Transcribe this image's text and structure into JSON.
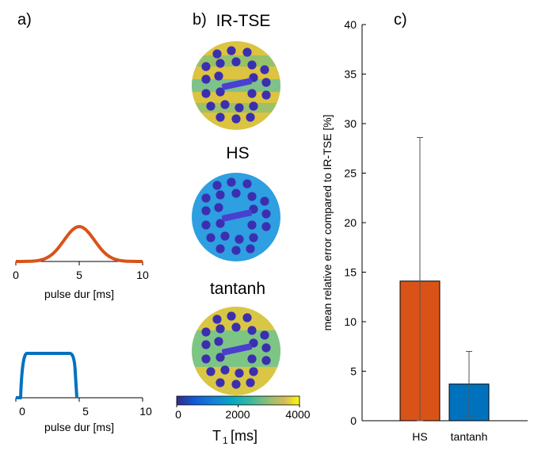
{
  "panels": {
    "a": "a)",
    "b": "b)",
    "c": "c)"
  },
  "panel_a": {
    "top_plot": {
      "ticks": [
        "0",
        "5",
        "10"
      ],
      "xlabel": "pulse dur [ms]",
      "color": "#d95319"
    },
    "bottom_plot": {
      "ticks": [
        "0",
        "5",
        "10"
      ],
      "xlabel": "pulse dur [ms]",
      "color": "#0072bd"
    }
  },
  "panel_b": {
    "titles": [
      "IR-TSE",
      "HS",
      "tantanh"
    ],
    "colorbar": {
      "ticks": [
        "0",
        "2000",
        "4000"
      ],
      "label_main": "T",
      "label_sub": "1",
      "label_unit": "[ms]"
    }
  },
  "chart_data": {
    "type": "bar",
    "categories": [
      "HS",
      "tantanh"
    ],
    "values": [
      14.1,
      3.7
    ],
    "errors": [
      14.5,
      3.3
    ],
    "colors": [
      "#d95319",
      "#0072bd"
    ],
    "ylabel": "mean relative error compared to IR-TSE [%]",
    "xlabel": "",
    "ylim": [
      0,
      40
    ],
    "yticks": [
      "0",
      "5",
      "10",
      "15",
      "20",
      "25",
      "30",
      "35",
      "40"
    ]
  }
}
